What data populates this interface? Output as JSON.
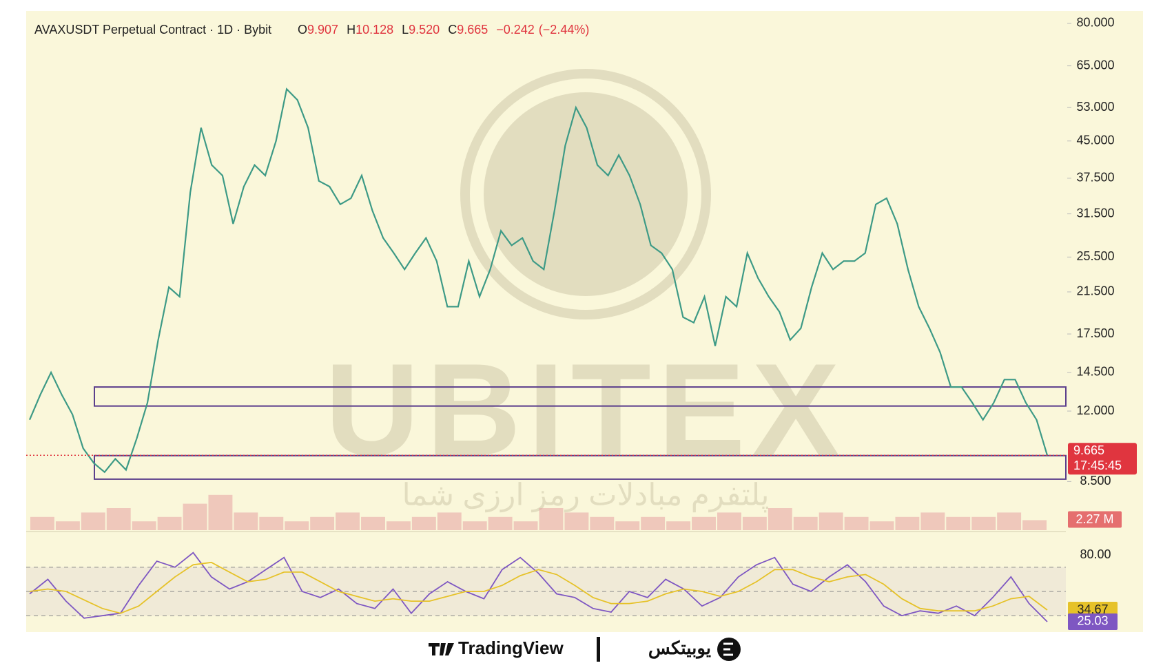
{
  "chart_data": [
    {
      "type": "line",
      "title": "AVAXUSDT Perpetual Contract · 1D · Bybit",
      "ohlc_labels": [
        "O",
        "H",
        "L",
        "C"
      ],
      "ohlc": [
        9.907,
        10.128,
        {
          "value": 9.52,
          "label": "9.520"
        },
        9.665
      ],
      "change": {
        "value": -0.242,
        "label": "−0.242"
      },
      "change_pct": {
        "value": -2.44,
        "label": "(−2.44%)"
      },
      "log_scale": true,
      "ylim": [
        6.7,
        85
      ],
      "yticks": [
        {
          "value": 80,
          "label": "80.000"
        },
        {
          "value": 65,
          "label": "65.000"
        },
        {
          "value": 53,
          "label": "53.000"
        },
        {
          "value": 45,
          "label": "45.000"
        },
        {
          "value": 37.5,
          "label": "37.500"
        },
        {
          "value": 31.5,
          "label": "31.500"
        },
        {
          "value": 25.5,
          "label": "25.500"
        },
        {
          "value": 21.5,
          "label": "21.500"
        },
        {
          "value": 17.5,
          "label": "17.500"
        },
        {
          "value": 14.5,
          "label": "14.500"
        },
        {
          "value": 12,
          "label": "12.000"
        },
        {
          "value": 8.5,
          "label": "8.500"
        }
      ],
      "series": [
        {
          "color": "#3d9a86",
          "values": [
            11.5,
            13,
            14.5,
            13,
            11.8,
            10,
            9.3,
            8.9,
            9.5,
            9,
            10.5,
            12.5,
            17,
            22,
            21,
            35,
            48,
            40,
            38,
            30,
            36,
            40,
            38,
            45,
            58,
            55,
            48,
            37,
            36,
            33,
            34,
            38,
            32,
            28,
            26,
            24,
            26,
            28,
            25,
            20,
            20,
            25,
            21,
            24,
            29,
            27,
            28,
            25,
            24,
            32,
            44,
            53,
            48,
            40,
            38,
            42,
            38,
            33,
            27,
            26,
            24,
            19,
            18.5,
            21,
            16.5,
            21,
            20,
            26,
            23,
            21,
            19.5,
            17,
            18,
            22,
            26,
            24,
            25,
            25,
            26,
            33,
            34,
            30,
            24,
            20,
            18,
            16,
            13.5,
            13.5,
            12.5,
            11.5,
            12.5,
            14,
            14,
            12.5,
            11.5,
            9.665
          ]
        }
      ],
      "zones": [
        {
          "low": 12.3,
          "high": 13.5
        },
        {
          "low": 8.6,
          "high": 9.65
        }
      ],
      "zone_color": "#5b3f8c",
      "last_color": "#e0353f",
      "countdown": "17:45:45",
      "watermark": "UBITEX",
      "watermark_sub": "پلتفرم مبادلات رمز ارزی شما"
    },
    {
      "type": "bar",
      "ylim": [
        0,
        25
      ],
      "color": "#e6a3a3",
      "last_label": "2.27 M",
      "values": [
        3,
        2,
        4,
        5,
        2,
        3,
        6,
        8,
        4,
        3,
        2,
        3,
        4,
        3,
        2,
        3,
        4,
        2,
        3,
        2,
        5,
        4,
        3,
        2,
        3,
        2,
        3,
        4,
        3,
        5,
        3,
        4,
        3,
        2,
        3,
        4,
        3,
        3,
        4,
        2.27
      ]
    },
    {
      "type": "line",
      "ylim": [
        16.5,
        98.3
      ],
      "yticks": [
        {
          "value": 80,
          "label": "80.00"
        }
      ],
      "levels": [
        70,
        50,
        30
      ],
      "series": [
        {
          "color": "#7e57c2",
          "values": [
            48,
            60,
            42,
            28,
            30,
            32,
            55,
            75,
            70,
            82,
            62,
            52,
            58,
            68,
            78,
            50,
            45,
            52,
            40,
            36,
            52,
            32,
            48,
            58,
            50,
            44,
            68,
            78,
            65,
            48,
            45,
            36,
            33,
            50,
            45,
            60,
            52,
            38,
            45,
            62,
            72,
            78,
            56,
            50,
            62,
            72,
            58,
            38,
            30,
            34,
            32,
            38,
            30,
            45,
            62,
            40,
            25.03
          ]
        },
        {
          "color": "#e6c229",
          "values": [
            50,
            52,
            50,
            43,
            36,
            32,
            38,
            50,
            62,
            72,
            74,
            66,
            58,
            60,
            66,
            66,
            58,
            50,
            46,
            42,
            44,
            42,
            42,
            46,
            50,
            50,
            55,
            63,
            68,
            64,
            55,
            45,
            40,
            40,
            42,
            48,
            52,
            50,
            46,
            50,
            58,
            68,
            68,
            62,
            58,
            62,
            64,
            56,
            44,
            36,
            34,
            34,
            34,
            38,
            44,
            46,
            34.67
          ]
        }
      ]
    }
  ],
  "footer": {
    "brand": "TradingView",
    "logo_text": "یوبیتکس"
  }
}
